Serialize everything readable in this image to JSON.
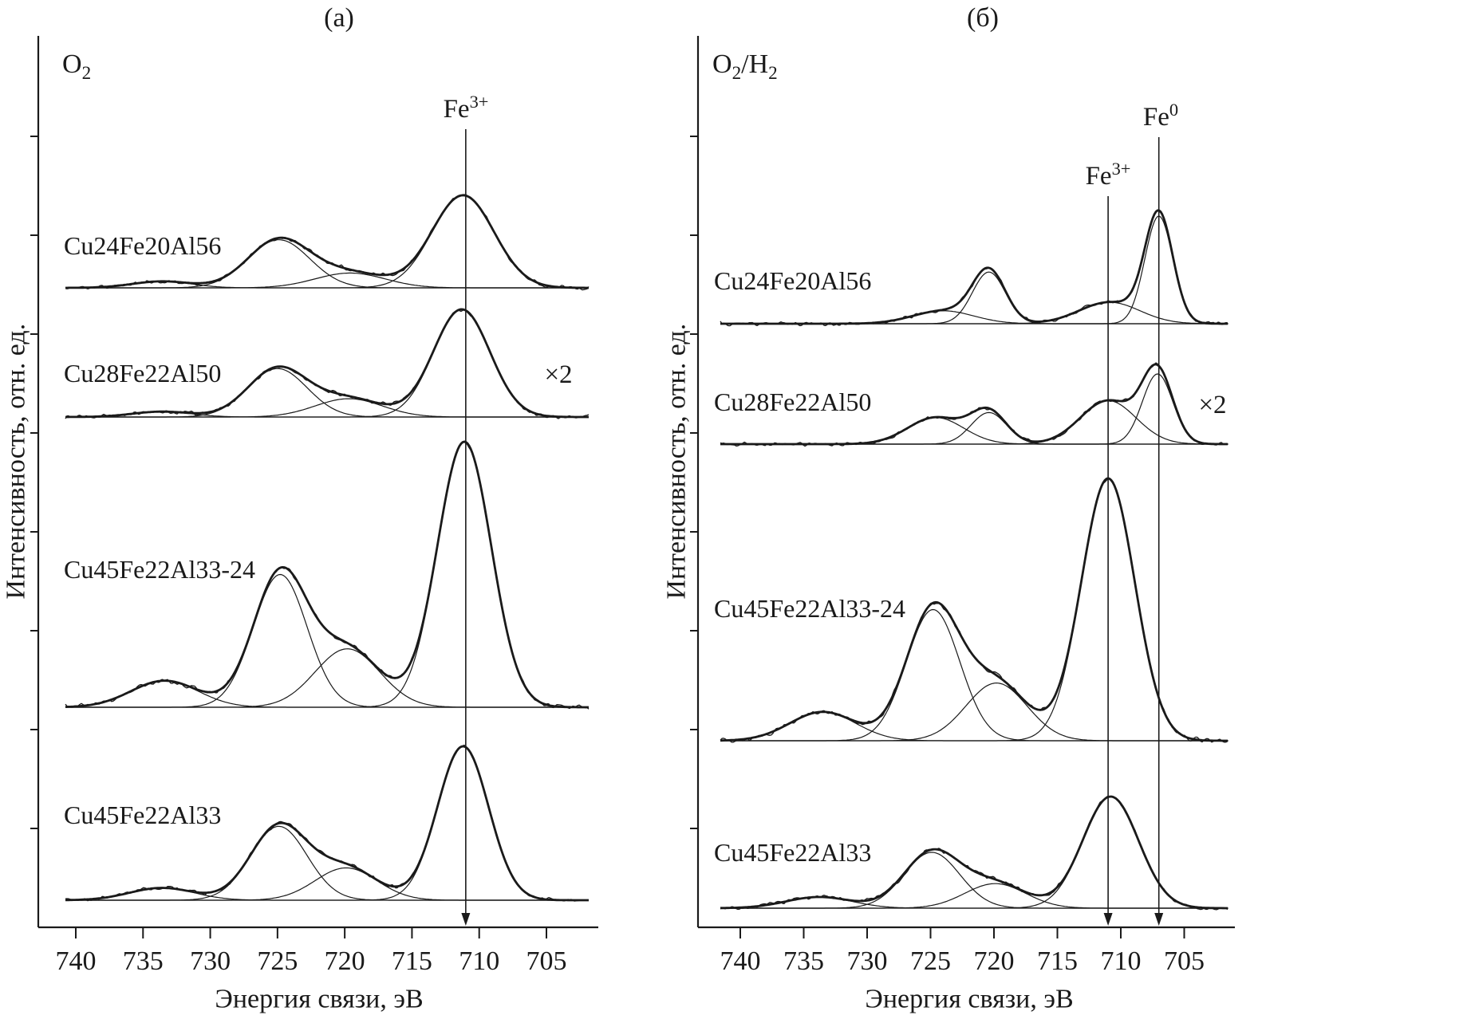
{
  "colors": {
    "background": "#ffffff",
    "ink": "#1a1a1a"
  },
  "chart_data": {
    "type": "line",
    "x_axis": {
      "label": "Энергия связи, эВ",
      "unit": "эВ",
      "ticks": [
        740,
        735,
        730,
        725,
        720,
        715,
        710,
        705
      ],
      "reversed": true,
      "range_eV": [
        743,
        701
      ]
    },
    "y_axis": {
      "label": "Интенсивность, отн. ед.",
      "tick_labels_shown": false
    },
    "panels": [
      {
        "title": "(а)",
        "condition_text": "O2",
        "condition_parts": [
          {
            "t": "O"
          },
          {
            "t": "2",
            "sub": true
          }
        ],
        "reference_lines": [
          {
            "label_text": "Fe3+",
            "label_parts": [
              {
                "t": "Fe"
              },
              {
                "t": "3+",
                "sup": true
              }
            ],
            "energy_eV": 711
          }
        ],
        "spectra": [
          {
            "label": "Cu24Fe20Al56",
            "scale_note": "",
            "peak_height_au": 116,
            "peaks": [
              {
                "center_eV": 711.2,
                "sigma_eV": 2.3,
                "height_rel": 1.0
              },
              {
                "center_eV": 719.6,
                "sigma_eV": 2.6,
                "height_rel": 0.16
              },
              {
                "center_eV": 724.9,
                "sigma_eV": 2.3,
                "height_rel": 0.52
              },
              {
                "center_eV": 733.6,
                "sigma_eV": 2.2,
                "height_rel": 0.07
              }
            ]
          },
          {
            "label": "Cu28Fe22Al50",
            "scale_note": "×2",
            "peak_height_au": 135,
            "peaks": [
              {
                "center_eV": 711.3,
                "sigma_eV": 2.1,
                "height_rel": 1.0
              },
              {
                "center_eV": 719.7,
                "sigma_eV": 2.5,
                "height_rel": 0.17
              },
              {
                "center_eV": 725.0,
                "sigma_eV": 2.2,
                "height_rel": 0.45
              },
              {
                "center_eV": 733.6,
                "sigma_eV": 2.2,
                "height_rel": 0.05
              }
            ]
          },
          {
            "label": "Cu45Fe22Al33-24",
            "scale_note": "",
            "peak_height_au": 333,
            "peaks": [
              {
                "center_eV": 711.1,
                "sigma_eV": 2.0,
                "height_rel": 1.0
              },
              {
                "center_eV": 719.8,
                "sigma_eV": 2.4,
                "height_rel": 0.22
              },
              {
                "center_eV": 724.8,
                "sigma_eV": 2.0,
                "height_rel": 0.5
              },
              {
                "center_eV": 733.4,
                "sigma_eV": 2.5,
                "height_rel": 0.1
              }
            ]
          },
          {
            "label": "Cu45Fe22Al33",
            "scale_note": "",
            "peak_height_au": 193,
            "peaks": [
              {
                "center_eV": 711.2,
                "sigma_eV": 1.9,
                "height_rel": 1.0
              },
              {
                "center_eV": 719.9,
                "sigma_eV": 2.3,
                "height_rel": 0.21
              },
              {
                "center_eV": 724.9,
                "sigma_eV": 2.1,
                "height_rel": 0.48
              },
              {
                "center_eV": 733.6,
                "sigma_eV": 2.4,
                "height_rel": 0.08
              }
            ]
          }
        ]
      },
      {
        "title": "(б)",
        "condition_text": "O2/H2",
        "condition_parts": [
          {
            "t": "O"
          },
          {
            "t": "2",
            "sub": true
          },
          {
            "t": "/H"
          },
          {
            "t": "2",
            "sub": true
          }
        ],
        "reference_lines": [
          {
            "label_text": "Fe3+",
            "label_parts": [
              {
                "t": "Fe"
              },
              {
                "t": "3+",
                "sup": true
              }
            ],
            "energy_eV": 711
          },
          {
            "label_text": "Fe0",
            "label_parts": [
              {
                "t": "Fe"
              },
              {
                "t": "0",
                "sup": true
              }
            ],
            "energy_eV": 707
          }
        ],
        "spectra": [
          {
            "label": "Cu24Fe20Al56",
            "scale_note": "",
            "peak_height_au": 135,
            "peaks": [
              {
                "center_eV": 707.0,
                "sigma_eV": 1.1,
                "height_rel": 1.0
              },
              {
                "center_eV": 710.9,
                "sigma_eV": 2.4,
                "height_rel": 0.2
              },
              {
                "center_eV": 720.4,
                "sigma_eV": 1.3,
                "height_rel": 0.48
              },
              {
                "center_eV": 724.0,
                "sigma_eV": 2.4,
                "height_rel": 0.12
              }
            ]
          },
          {
            "label": "Cu28Fe22Al50",
            "scale_note": "×2",
            "peak_height_au": 88,
            "peaks": [
              {
                "center_eV": 707.1,
                "sigma_eV": 1.2,
                "height_rel": 1.0
              },
              {
                "center_eV": 711.0,
                "sigma_eV": 2.2,
                "height_rel": 0.62
              },
              {
                "center_eV": 720.4,
                "sigma_eV": 1.4,
                "height_rel": 0.45
              },
              {
                "center_eV": 724.6,
                "sigma_eV": 2.2,
                "height_rel": 0.38
              }
            ]
          },
          {
            "label": "Cu45Fe22Al33-24",
            "scale_note": "",
            "peak_height_au": 329,
            "peaks": [
              {
                "center_eV": 711.0,
                "sigma_eV": 2.1,
                "height_rel": 1.0
              },
              {
                "center_eV": 719.8,
                "sigma_eV": 2.4,
                "height_rel": 0.22
              },
              {
                "center_eV": 724.8,
                "sigma_eV": 2.1,
                "height_rel": 0.5
              },
              {
                "center_eV": 733.5,
                "sigma_eV": 2.6,
                "height_rel": 0.11
              }
            ]
          },
          {
            "label": "Cu45Fe22Al33",
            "scale_note": "",
            "peak_height_au": 140,
            "peaks": [
              {
                "center_eV": 710.8,
                "sigma_eV": 2.2,
                "height_rel": 1.0
              },
              {
                "center_eV": 719.9,
                "sigma_eV": 2.4,
                "height_rel": 0.22
              },
              {
                "center_eV": 724.9,
                "sigma_eV": 2.2,
                "height_rel": 0.5
              },
              {
                "center_eV": 733.8,
                "sigma_eV": 2.6,
                "height_rel": 0.1
              }
            ]
          }
        ]
      }
    ]
  }
}
